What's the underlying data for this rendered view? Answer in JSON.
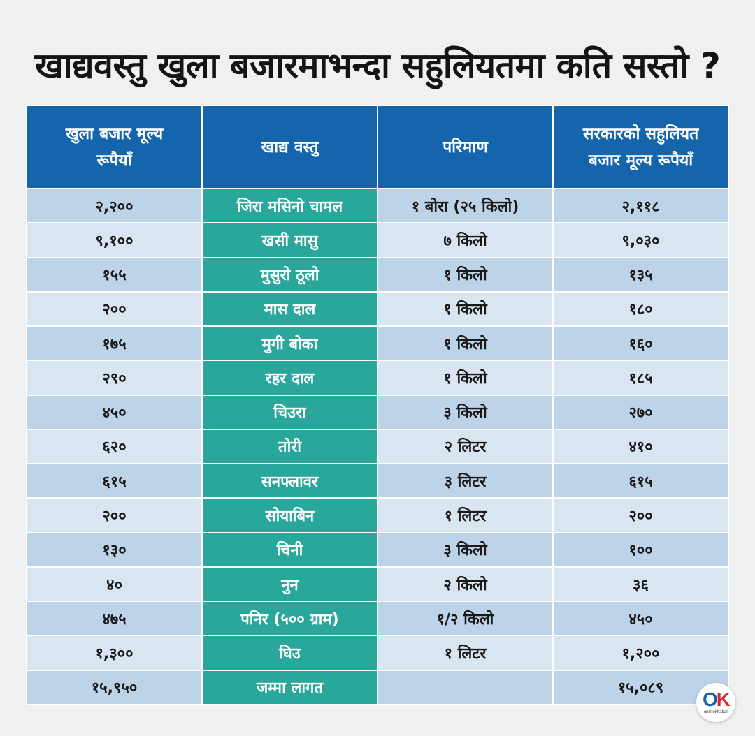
{
  "title": "खाद्यवस्तु खुला बजारमाभन्दा सहुलियतमा कति सस्तो ?",
  "headers": {
    "open_price": [
      "खुला बजार मूल्य",
      "रूपैयाँ"
    ],
    "item": "खाद्य वस्तु",
    "quantity": "परिमाण",
    "govt_price": [
      "सरकारको सहुलियत",
      "बजार मूल्य रूपैयाँ"
    ]
  },
  "rows": [
    {
      "open_price": "२,२००",
      "item": "जिरा मसिनो चामल",
      "quantity": "१ बोरा (२५ किलो)",
      "govt_price": "२,११८"
    },
    {
      "open_price": "९,१००",
      "item": "खसी मासु",
      "quantity": "७ किलो",
      "govt_price": "९,०३०"
    },
    {
      "open_price": "१५५",
      "item": "मुसुरो ठूलो",
      "quantity": "१ किलो",
      "govt_price": "१३५"
    },
    {
      "open_price": "२००",
      "item": "मास दाल",
      "quantity": "१ किलो",
      "govt_price": "१८०"
    },
    {
      "open_price": "१७५",
      "item": "मुगी बोका",
      "quantity": "१ किलो",
      "govt_price": "१६०"
    },
    {
      "open_price": "२९०",
      "item": "रहर दाल",
      "quantity": "१ किलो",
      "govt_price": "१८५"
    },
    {
      "open_price": "४५०",
      "item": "चिउरा",
      "quantity": "३ किलो",
      "govt_price": "२७०"
    },
    {
      "open_price": "६२०",
      "item": "तोरी",
      "quantity": "२ लिटर",
      "govt_price": "४१०"
    },
    {
      "open_price": "६१५",
      "item": "सनफ्लावर",
      "quantity": "३ लिटर",
      "govt_price": "६१५"
    },
    {
      "open_price": "२००",
      "item": "सोयाबिन",
      "quantity": "१ लिटर",
      "govt_price": "२००"
    },
    {
      "open_price": "१३०",
      "item": "चिनी",
      "quantity": "३ किलो",
      "govt_price": "१००"
    },
    {
      "open_price": "४०",
      "item": "नुन",
      "quantity": "२ किलो",
      "govt_price": "३६"
    },
    {
      "open_price": "४७५",
      "item": "पनिर (५०० ग्राम)",
      "quantity": "१/२ किलो",
      "govt_price": "४५०"
    },
    {
      "open_price": "१,३००",
      "item": "घिउ",
      "quantity": "१ लिटर",
      "govt_price": "१,२००"
    }
  ],
  "total": {
    "open_price": "१५,९५०",
    "item": "जम्मा लागत",
    "quantity": "",
    "govt_price": "१५,०८९"
  },
  "logo": {
    "mark_o": "O",
    "mark_k": "K",
    "sub": "onlinekhabar"
  }
}
